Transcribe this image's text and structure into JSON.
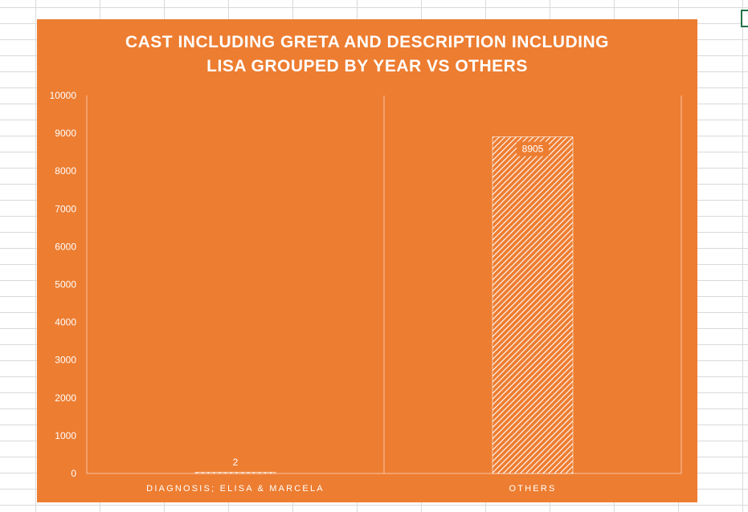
{
  "chart_data": {
    "type": "bar",
    "title": "CAST INCLUDING GRETA AND DESCRIPTION INCLUDING LISA GROUPED BY YEAR VS OTHERS",
    "title_lines": [
      "CAST INCLUDING GRETA AND DESCRIPTION INCLUDING",
      "LISA GROUPED BY YEAR VS OTHERS"
    ],
    "categories": [
      "DIAGNOSIS; ELISA & MARCELA",
      "OTHERS"
    ],
    "values": [
      2,
      8905
    ],
    "data_labels": [
      "2",
      "8905"
    ],
    "yticks": [
      "0",
      "1000",
      "2000",
      "3000",
      "4000",
      "5000",
      "6000",
      "7000",
      "8000",
      "9000",
      "10000"
    ],
    "ylim": [
      0,
      10000
    ],
    "xlabel": "",
    "ylabel": "",
    "grid": false,
    "legend": "none",
    "bar_fill": "diagonal-hatch",
    "colors": {
      "background": "#ed7d31",
      "foreground": "#ffffff",
      "label_box": "#ed7d31"
    }
  }
}
